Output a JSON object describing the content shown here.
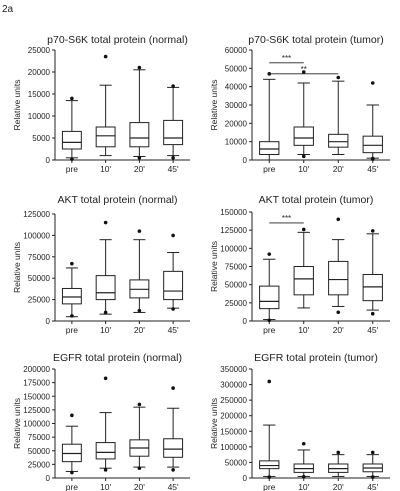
{
  "figure_label": "2a",
  "y_label": "Relative units",
  "categories": [
    "pre",
    "10'",
    "20'",
    "45'"
  ],
  "chart_data": [
    {
      "type": "box",
      "title": "p70-S6K total protein (normal)",
      "ylabel": "Relative units",
      "categories": [
        "pre",
        "10'",
        "20'",
        "45'"
      ],
      "ylim": [
        0,
        25000
      ],
      "yticks": [
        0,
        5000,
        10000,
        15000,
        20000,
        25000
      ],
      "boxes": [
        {
          "min": 500,
          "q1": 2500,
          "median": 4000,
          "q3": 6500,
          "max": 13500,
          "outliers": [
            14000,
            200
          ]
        },
        {
          "min": 1000,
          "q1": 3000,
          "median": 5500,
          "q3": 7500,
          "max": 17000,
          "outliers": [
            23500
          ]
        },
        {
          "min": 800,
          "q1": 3000,
          "median": 5000,
          "q3": 8500,
          "max": 20500,
          "outliers": [
            21000,
            500
          ]
        },
        {
          "min": 1000,
          "q1": 3500,
          "median": 5000,
          "q3": 9000,
          "max": 16500,
          "outliers": [
            16800,
            500
          ]
        }
      ],
      "significance": []
    },
    {
      "type": "box",
      "title": "p70-S6K total protein (tumor)",
      "ylabel": "Relative units",
      "categories": [
        "pre",
        "10'",
        "20'",
        "45'"
      ],
      "ylim": [
        0,
        60000
      ],
      "yticks": [
        0,
        10000,
        20000,
        30000,
        40000,
        50000,
        60000
      ],
      "boxes": [
        {
          "min": 0,
          "q1": 3000,
          "median": 6000,
          "q3": 10000,
          "max": 44000,
          "outliers": [
            47000
          ]
        },
        {
          "min": 3000,
          "q1": 8000,
          "median": 12000,
          "q3": 18000,
          "max": 42000,
          "outliers": [
            48000,
            2000
          ]
        },
        {
          "min": 3000,
          "q1": 7000,
          "median": 10000,
          "q3": 14000,
          "max": 43000,
          "outliers": [
            45000
          ]
        },
        {
          "min": 1000,
          "q1": 4000,
          "median": 8000,
          "q3": 13000,
          "max": 30000,
          "outliers": [
            42000,
            500,
            800
          ]
        }
      ],
      "significance": [
        {
          "from": 0,
          "to": 1,
          "label": "***",
          "level": 53000
        },
        {
          "from": 0,
          "to": 2,
          "label": "**",
          "level": 47000
        }
      ]
    },
    {
      "type": "box",
      "title": "AKT total protein (normal)",
      "ylabel": "Relative units",
      "categories": [
        "pre",
        "10'",
        "20'",
        "45'"
      ],
      "ylim": [
        0,
        125000
      ],
      "yticks": [
        0,
        25000,
        50000,
        75000,
        100000,
        125000
      ],
      "boxes": [
        {
          "min": 5000,
          "q1": 20000,
          "median": 28000,
          "q3": 38000,
          "max": 62000,
          "outliers": [
            67000,
            6000
          ]
        },
        {
          "min": 8000,
          "q1": 25000,
          "median": 33000,
          "q3": 53000,
          "max": 95000,
          "outliers": [
            115000,
            10000
          ]
        },
        {
          "min": 10000,
          "q1": 27000,
          "median": 37000,
          "q3": 48000,
          "max": 95000,
          "outliers": [
            105000,
            12000
          ]
        },
        {
          "min": 15000,
          "q1": 25000,
          "median": 35000,
          "q3": 58000,
          "max": 80000,
          "outliers": [
            100000,
            14000
          ]
        }
      ],
      "significance": []
    },
    {
      "type": "box",
      "title": "AKT total protein (tumor)",
      "ylabel": "Relative units",
      "categories": [
        "pre",
        "10'",
        "20'",
        "45'"
      ],
      "ylim": [
        0,
        150000
      ],
      "yticks": [
        0,
        25000,
        50000,
        75000,
        100000,
        125000,
        150000
      ],
      "boxes": [
        {
          "min": 2000,
          "q1": 17000,
          "median": 27000,
          "q3": 48000,
          "max": 85000,
          "outliers": [
            92000,
            1000
          ]
        },
        {
          "min": 18000,
          "q1": 36000,
          "median": 58000,
          "q3": 75000,
          "max": 122000,
          "outliers": [
            126000
          ]
        },
        {
          "min": 20000,
          "q1": 36000,
          "median": 57000,
          "q3": 82000,
          "max": 112000,
          "outliers": [
            140000,
            12000
          ]
        },
        {
          "min": 15000,
          "q1": 28000,
          "median": 47000,
          "q3": 64000,
          "max": 120000,
          "outliers": [
            124000,
            10000
          ]
        }
      ],
      "significance": [
        {
          "from": 0,
          "to": 1,
          "label": "***",
          "level": 135000
        }
      ]
    },
    {
      "type": "box",
      "title": "EGFR total protein (normal)",
      "ylabel": "Relative units",
      "categories": [
        "pre",
        "10'",
        "20'",
        "45'"
      ],
      "ylim": [
        0,
        200000
      ],
      "yticks": [
        0,
        25000,
        50000,
        75000,
        100000,
        125000,
        150000,
        175000,
        200000
      ],
      "boxes": [
        {
          "min": 12000,
          "q1": 30000,
          "median": 45000,
          "q3": 62000,
          "max": 95000,
          "outliers": [
            115000,
            10000
          ]
        },
        {
          "min": 18000,
          "q1": 35000,
          "median": 47000,
          "q3": 65000,
          "max": 120000,
          "outliers": [
            183000,
            15000
          ]
        },
        {
          "min": 20000,
          "q1": 40000,
          "median": 55000,
          "q3": 70000,
          "max": 130000,
          "outliers": [
            135000,
            18000
          ]
        },
        {
          "min": 20000,
          "q1": 38000,
          "median": 53000,
          "q3": 72000,
          "max": 128000,
          "outliers": [
            165000,
            15000
          ]
        }
      ],
      "significance": []
    },
    {
      "type": "box",
      "title": "EGFR total protein (tumor)",
      "ylabel": "Relative units",
      "categories": [
        "pre",
        "10'",
        "20'",
        "45'"
      ],
      "ylim": [
        0,
        350000
      ],
      "yticks": [
        0,
        50000,
        100000,
        150000,
        200000,
        250000,
        300000,
        350000
      ],
      "boxes": [
        {
          "min": 5000,
          "q1": 30000,
          "median": 40000,
          "q3": 55000,
          "max": 170000,
          "outliers": [
            310000,
            3000
          ]
        },
        {
          "min": 5000,
          "q1": 18000,
          "median": 30000,
          "q3": 45000,
          "max": 90000,
          "outliers": [
            110000,
            4000
          ]
        },
        {
          "min": 5000,
          "q1": 18000,
          "median": 30000,
          "q3": 45000,
          "max": 75000,
          "outliers": [
            82000
          ]
        },
        {
          "min": 5000,
          "q1": 20000,
          "median": 32000,
          "q3": 45000,
          "max": 75000,
          "outliers": [
            82000,
            3000
          ]
        }
      ],
      "significance": []
    }
  ]
}
